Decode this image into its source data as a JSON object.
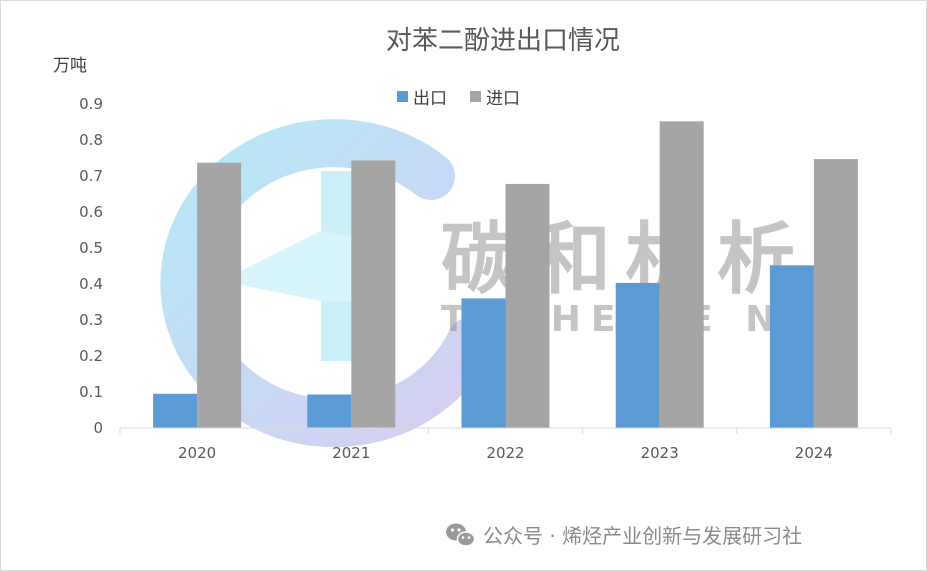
{
  "chart_data": {
    "type": "bar",
    "title": "对苯二酚进出口情况",
    "ylabel": "万吨",
    "xlabel": "",
    "categories": [
      "2020",
      "2021",
      "2022",
      "2023",
      "2024"
    ],
    "series": [
      {
        "name": "出口",
        "color": "#5b9bd5",
        "values": [
          0.095,
          0.093,
          0.36,
          0.403,
          0.452
        ]
      },
      {
        "name": "进口",
        "color": "#a5a5a5",
        "values": [
          0.737,
          0.743,
          0.678,
          0.852,
          0.747
        ]
      }
    ],
    "ylim": [
      0,
      0.9
    ],
    "yticks": [
      "0",
      "0.1",
      "0.2",
      "0.3",
      "0.4",
      "0.5",
      "0.6",
      "0.7",
      "0.8",
      "0.9"
    ],
    "legend_position": "top-center",
    "grid": false
  },
  "watermark": {
    "cn_text": "碳和析析",
    "en_text": "TANHE HE N",
    "logo": "logo-ring-icon"
  },
  "footer": {
    "text": "公众号 · 烯烃产业创新与发展研习社",
    "icon": "wechat-icon"
  }
}
